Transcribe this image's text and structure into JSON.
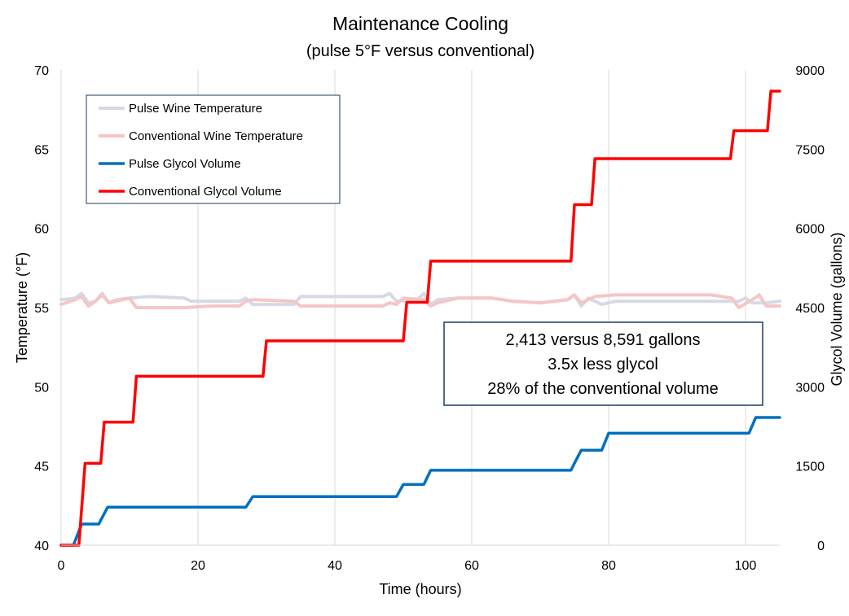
{
  "chart_data": {
    "type": "line",
    "title": "Maintenance Cooling",
    "subtitle": "(pulse 5°F versus conventional)",
    "xlabel": "Time (hours)",
    "ylabel_left": "Temperature (°F)",
    "ylabel_right": "Glycol Volume (gallons)",
    "xlim": [
      0,
      105
    ],
    "ylim_left": [
      40,
      70
    ],
    "ylim_right": [
      0,
      9000
    ],
    "x_ticks": [
      0,
      20,
      40,
      60,
      80,
      100
    ],
    "y_ticks_left": [
      40,
      45,
      50,
      55,
      60,
      65,
      70
    ],
    "y_ticks_right": [
      "0",
      "1500",
      "3000",
      "4500",
      "6000",
      "7500",
      "9000"
    ],
    "grid": "vertical",
    "legend_position": "top-left",
    "annotation": [
      "2,413 versus 8,591 gallons",
      "3.5x less glycol",
      "28% of the conventional volume"
    ],
    "series": [
      {
        "name": "Pulse Wine Temperature",
        "axis": "left",
        "color": "#d5dae6",
        "points": [
          [
            0,
            55.5
          ],
          [
            2,
            55.6
          ],
          [
            3,
            55.9
          ],
          [
            4,
            55.3
          ],
          [
            5,
            55.4
          ],
          [
            6,
            55.9
          ],
          [
            7,
            55.3
          ],
          [
            8,
            55.5
          ],
          [
            10,
            55.6
          ],
          [
            13,
            55.7
          ],
          [
            18,
            55.6
          ],
          [
            19,
            55.4
          ],
          [
            26,
            55.4
          ],
          [
            27,
            55.6
          ],
          [
            28,
            55.2
          ],
          [
            34,
            55.2
          ],
          [
            35,
            55.7
          ],
          [
            47,
            55.7
          ],
          [
            48,
            55.9
          ],
          [
            49,
            55.4
          ],
          [
            52,
            55.5
          ],
          [
            53,
            55.9
          ],
          [
            54,
            55.2
          ],
          [
            55,
            55.5
          ],
          [
            58,
            55.6
          ],
          [
            63,
            55.6
          ],
          [
            66,
            55.4
          ],
          [
            70,
            55.3
          ],
          [
            74,
            55.5
          ],
          [
            75,
            55.8
          ],
          [
            76,
            55.1
          ],
          [
            77,
            55.6
          ],
          [
            79,
            55.2
          ],
          [
            81,
            55.4
          ],
          [
            85,
            55.4
          ],
          [
            99,
            55.4
          ],
          [
            100,
            55.6
          ],
          [
            101,
            55.3
          ],
          [
            103,
            55.3
          ],
          [
            105,
            55.4
          ]
        ]
      },
      {
        "name": "Conventional Wine Temperature",
        "axis": "left",
        "color": "#f5c6c6",
        "points": [
          [
            0,
            55.2
          ],
          [
            2,
            55.5
          ],
          [
            3,
            55.7
          ],
          [
            4,
            55.1
          ],
          [
            5,
            55.4
          ],
          [
            6,
            55.8
          ],
          [
            7,
            55.3
          ],
          [
            8,
            55.4
          ],
          [
            10,
            55.6
          ],
          [
            11,
            55.0
          ],
          [
            18,
            55.0
          ],
          [
            22,
            55.1
          ],
          [
            26,
            55.1
          ],
          [
            27,
            55.4
          ],
          [
            28,
            55.5
          ],
          [
            34,
            55.4
          ],
          [
            35,
            55.1
          ],
          [
            47,
            55.1
          ],
          [
            48,
            55.3
          ],
          [
            49,
            55.2
          ],
          [
            50,
            55.6
          ],
          [
            53,
            55.5
          ],
          [
            54,
            55.1
          ],
          [
            55,
            55.3
          ],
          [
            58,
            55.6
          ],
          [
            63,
            55.6
          ],
          [
            66,
            55.4
          ],
          [
            70,
            55.3
          ],
          [
            74,
            55.5
          ],
          [
            75,
            55.8
          ],
          [
            76,
            55.3
          ],
          [
            78,
            55.7
          ],
          [
            81,
            55.8
          ],
          [
            95,
            55.8
          ],
          [
            98,
            55.6
          ],
          [
            99,
            55.0
          ],
          [
            101,
            55.5
          ],
          [
            102,
            55.8
          ],
          [
            103,
            55.1
          ],
          [
            105,
            55.1
          ]
        ]
      },
      {
        "name": "Pulse Glycol Volume",
        "axis": "right",
        "color": "#0070c0",
        "points": [
          [
            0,
            0
          ],
          [
            1.8,
            0
          ],
          [
            3,
            400
          ],
          [
            5.5,
            400
          ],
          [
            6.8,
            720
          ],
          [
            27,
            720
          ],
          [
            28,
            920
          ],
          [
            49,
            920
          ],
          [
            50,
            1150
          ],
          [
            53,
            1150
          ],
          [
            54,
            1420
          ],
          [
            74.5,
            1420
          ],
          [
            75,
            1550
          ],
          [
            76,
            1800
          ],
          [
            79,
            1800
          ],
          [
            80,
            2120
          ],
          [
            100.5,
            2120
          ],
          [
            101.5,
            2420
          ],
          [
            105,
            2420
          ]
        ]
      },
      {
        "name": "Conventional Glycol Volume",
        "axis": "right",
        "color": "#ff0000",
        "points": [
          [
            0,
            0
          ],
          [
            2.6,
            0
          ],
          [
            3.5,
            1550
          ],
          [
            5.8,
            1550
          ],
          [
            6.3,
            2330
          ],
          [
            10.5,
            2330
          ],
          [
            11,
            3200
          ],
          [
            29.5,
            3200
          ],
          [
            30,
            3870
          ],
          [
            50,
            3870
          ],
          [
            50.5,
            4600
          ],
          [
            53.5,
            4600
          ],
          [
            54,
            5380
          ],
          [
            74.5,
            5380
          ],
          [
            75,
            6450
          ],
          [
            77.5,
            6450
          ],
          [
            78,
            7320
          ],
          [
            97.8,
            7320
          ],
          [
            98.3,
            7850
          ],
          [
            103.2,
            7850
          ],
          [
            103.7,
            8600
          ],
          [
            105,
            8600
          ]
        ]
      }
    ]
  }
}
